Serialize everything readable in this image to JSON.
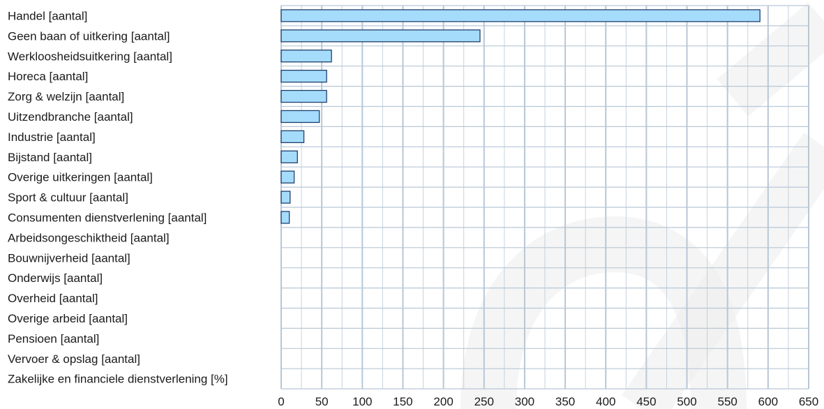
{
  "chart_data": {
    "type": "bar",
    "orientation": "horizontal",
    "categories": [
      "Handel [aantal]",
      "Geen baan of uitkering [aantal]",
      "Werkloosheidsuitkering [aantal]",
      "Horeca [aantal]",
      "Zorg & welzijn [aantal]",
      "Uitzendbranche [aantal]",
      "Industrie [aantal]",
      "Bijstand [aantal]",
      "Overige uitkeringen [aantal]",
      "Sport & cultuur [aantal]",
      "Consumenten dienstverlening [aantal]",
      "Arbeidsongeschiktheid [aantal]",
      "Bouwnijverheid [aantal]",
      "Onderwijs [aantal]",
      "Overheid [aantal]",
      "Overige arbeid [aantal]",
      "Pensioen [aantal]",
      "Vervoer & opslag [aantal]",
      "Zakelijke en financiele dienstverlening [%]"
    ],
    "values": [
      590,
      245,
      62,
      56,
      56,
      47,
      28,
      20,
      16,
      11,
      10,
      0,
      0,
      0,
      0,
      0,
      0,
      0,
      0
    ],
    "xlim": [
      0,
      650
    ],
    "xticks": [
      "0",
      "50",
      "100",
      "150",
      "200",
      "250",
      "300",
      "350",
      "400",
      "450",
      "500",
      "550",
      "600",
      "650"
    ],
    "grid": true,
    "colors": {
      "bar_fill": "#a6dcfb",
      "bar_stroke": "#1f3f6e",
      "grid": "#b7c7d6",
      "watermark": "#ececec"
    }
  }
}
